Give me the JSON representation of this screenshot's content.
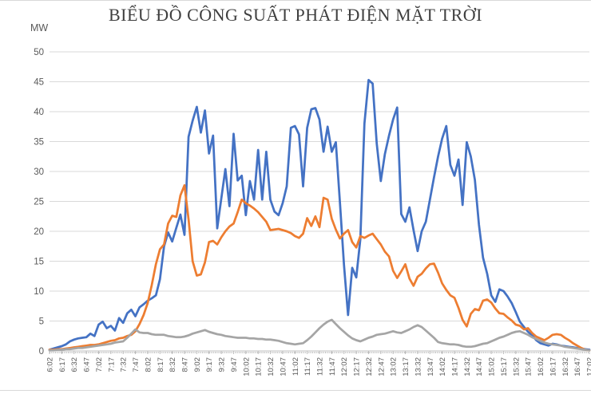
{
  "title": "BIỂU ĐỒ CÔNG SUẤT PHÁT ĐIỆN MẶT TRỜI",
  "y_axis_unit": "MW",
  "colors": {
    "series_blue": "#4472C4",
    "series_orange": "#ED7D31",
    "series_gray": "#A5A5A5",
    "gridline": "#D9D9D9",
    "axis_line": "#BFBFBF",
    "axis_text": "#595959",
    "title_text": "#3F3F3F"
  },
  "chart_data": {
    "type": "line",
    "title": "BIỂU ĐỒ CÔNG SUẤT PHÁT ĐIỆN MẶT TRỜI",
    "xlabel": "",
    "ylabel": "MW",
    "ylim": [
      0,
      50
    ],
    "y_ticks": [
      0,
      5,
      10,
      15,
      20,
      25,
      30,
      35,
      40,
      45,
      50
    ],
    "grid": "horizontal",
    "legend": "none",
    "x_tick_labels": [
      "6:02",
      "6:17",
      "6:32",
      "6:47",
      "7:02",
      "7:17",
      "7:32",
      "7:47",
      "8:02",
      "8:17",
      "8:32",
      "8:47",
      "9:02",
      "9:17",
      "9:32",
      "9:47",
      "10:02",
      "10:17",
      "10:32",
      "10:47",
      "11:02",
      "11:17",
      "11:32",
      "11:47",
      "12:02",
      "12:17",
      "12:32",
      "12:47",
      "13:02",
      "13:17",
      "13:32",
      "13:47",
      "14:02",
      "14:17",
      "14:32",
      "14:47",
      "15:02",
      "15:17",
      "15:32",
      "15:47",
      "16:02",
      "16:17",
      "16:32",
      "16:47",
      "17:02"
    ],
    "x": [
      "6:02",
      "6:07",
      "6:12",
      "6:17",
      "6:22",
      "6:27",
      "6:32",
      "6:37",
      "6:42",
      "6:47",
      "6:52",
      "6:57",
      "7:02",
      "7:07",
      "7:12",
      "7:17",
      "7:22",
      "7:27",
      "7:32",
      "7:37",
      "7:42",
      "7:47",
      "7:52",
      "7:57",
      "8:02",
      "8:07",
      "8:12",
      "8:17",
      "8:22",
      "8:27",
      "8:32",
      "8:37",
      "8:42",
      "8:47",
      "8:52",
      "8:57",
      "9:02",
      "9:07",
      "9:12",
      "9:17",
      "9:22",
      "9:27",
      "9:32",
      "9:37",
      "9:42",
      "9:47",
      "9:52",
      "9:57",
      "10:02",
      "10:07",
      "10:12",
      "10:17",
      "10:22",
      "10:27",
      "10:32",
      "10:37",
      "10:42",
      "10:47",
      "10:52",
      "10:57",
      "11:02",
      "11:07",
      "11:12",
      "11:17",
      "11:22",
      "11:27",
      "11:32",
      "11:37",
      "11:42",
      "11:47",
      "11:52",
      "11:57",
      "12:02",
      "12:07",
      "12:12",
      "12:17",
      "12:22",
      "12:27",
      "12:32",
      "12:37",
      "12:42",
      "12:47",
      "12:52",
      "12:57",
      "13:02",
      "13:07",
      "13:12",
      "13:17",
      "13:22",
      "13:27",
      "13:32",
      "13:37",
      "13:42",
      "13:47",
      "13:52",
      "13:57",
      "14:02",
      "14:07",
      "14:12",
      "14:17",
      "14:22",
      "14:27",
      "14:32",
      "14:37",
      "14:42",
      "14:47",
      "14:52",
      "14:57",
      "15:02",
      "15:07",
      "15:12",
      "15:17",
      "15:22",
      "15:27",
      "15:32",
      "15:37",
      "15:42",
      "15:47",
      "15:52",
      "15:57",
      "16:02",
      "16:07",
      "16:12",
      "16:17",
      "16:22",
      "16:27",
      "16:32",
      "16:37",
      "16:42",
      "16:47",
      "16:52",
      "16:57",
      "17:02"
    ],
    "series": [
      {
        "id": "blue",
        "name": "series-1-blue",
        "color": "#4472C4",
        "values": [
          0.2,
          0.4,
          0.6,
          0.8,
          1.1,
          1.6,
          1.9,
          2.1,
          2.2,
          2.3,
          2.9,
          2.5,
          4.4,
          4.9,
          3.8,
          4.2,
          3.4,
          5.5,
          4.7,
          6.3,
          6.9,
          5.8,
          7.3,
          7.8,
          8.4,
          8.8,
          9.3,
          12.0,
          17.5,
          19.8,
          18.3,
          20.6,
          22.8,
          19.4,
          35.8,
          38.5,
          40.8,
          36.5,
          40.2,
          33.0,
          36.0,
          20.5,
          25.5,
          30.4,
          24.2,
          36.3,
          28.5,
          29.3,
          22.7,
          28.4,
          25.3,
          33.6,
          25.3,
          33.3,
          25.3,
          23.3,
          22.7,
          24.7,
          27.5,
          37.3,
          37.6,
          36.2,
          27.5,
          37.3,
          40.4,
          40.6,
          38.7,
          33.3,
          37.5,
          33.3,
          34.9,
          24.9,
          14.4,
          6.0,
          13.9,
          12.3,
          18.7,
          38.0,
          45.3,
          44.7,
          34.7,
          28.4,
          32.9,
          36.0,
          38.7,
          40.7,
          22.9,
          21.6,
          24.0,
          20.2,
          16.7,
          20.0,
          21.6,
          25.3,
          29.0,
          32.5,
          35.5,
          37.6,
          31.1,
          29.3,
          32.0,
          24.4,
          34.9,
          32.5,
          28.6,
          21.1,
          15.6,
          12.9,
          9.3,
          8.2,
          10.3,
          10.0,
          9.1,
          8.0,
          6.5,
          4.9,
          4.0,
          3.2,
          2.6,
          1.8,
          1.3,
          1.1,
          0.9,
          1.2,
          1.1,
          0.9,
          0.8,
          0.7,
          0.6,
          0.5,
          0.4,
          0.3,
          0.2
        ]
      },
      {
        "id": "orange",
        "name": "series-2-orange",
        "color": "#ED7D31",
        "values": [
          0.2,
          0.2,
          0.3,
          0.3,
          0.4,
          0.5,
          0.6,
          0.7,
          0.8,
          0.9,
          1.0,
          1.0,
          1.1,
          1.3,
          1.5,
          1.7,
          1.8,
          2.1,
          2.2,
          2.5,
          2.7,
          3.3,
          4.5,
          6.0,
          8.0,
          11.0,
          14.5,
          17.0,
          17.8,
          21.3,
          22.6,
          22.4,
          26.0,
          27.7,
          22.0,
          15.0,
          12.6,
          12.8,
          14.8,
          18.2,
          18.4,
          17.8,
          19.0,
          20.0,
          20.8,
          21.3,
          23.2,
          25.3,
          24.7,
          24.3,
          23.8,
          23.2,
          22.4,
          21.6,
          20.2,
          20.3,
          20.4,
          20.2,
          20.0,
          19.7,
          19.2,
          18.9,
          19.6,
          22.2,
          20.9,
          22.5,
          20.7,
          25.6,
          25.3,
          22.1,
          20.3,
          18.8,
          19.6,
          20.2,
          18.2,
          17.3,
          19.2,
          18.9,
          19.3,
          19.6,
          18.7,
          17.8,
          16.6,
          15.8,
          13.4,
          12.2,
          13.3,
          14.5,
          12.1,
          10.9,
          12.4,
          12.9,
          13.8,
          14.5,
          14.6,
          13.1,
          11.3,
          10.2,
          9.3,
          8.9,
          7.2,
          5.2,
          4.1,
          6.2,
          7.0,
          6.8,
          8.4,
          8.6,
          8.1,
          7.1,
          6.3,
          6.2,
          5.6,
          5.1,
          4.4,
          4.2,
          3.6,
          3.8,
          3.0,
          2.4,
          2.1,
          1.8,
          2.2,
          2.7,
          2.8,
          2.7,
          2.2,
          1.8,
          1.3,
          0.9,
          0.5,
          0.2,
          0.1
        ]
      },
      {
        "id": "gray",
        "name": "series-3-gray",
        "color": "#A5A5A5",
        "values": [
          0.1,
          0.1,
          0.2,
          0.2,
          0.3,
          0.3,
          0.4,
          0.5,
          0.5,
          0.6,
          0.7,
          0.8,
          0.9,
          1.0,
          1.1,
          1.2,
          1.4,
          1.5,
          1.6,
          2.2,
          2.9,
          3.6,
          3.1,
          3.0,
          3.0,
          2.8,
          2.7,
          2.7,
          2.7,
          2.5,
          2.4,
          2.3,
          2.3,
          2.4,
          2.6,
          2.9,
          3.1,
          3.3,
          3.5,
          3.2,
          3.0,
          2.8,
          2.7,
          2.5,
          2.4,
          2.3,
          2.2,
          2.2,
          2.2,
          2.1,
          2.1,
          2.0,
          2.0,
          1.9,
          1.9,
          1.8,
          1.7,
          1.5,
          1.3,
          1.2,
          1.1,
          1.2,
          1.3,
          1.8,
          2.4,
          3.1,
          3.8,
          4.4,
          4.9,
          5.2,
          4.5,
          3.8,
          3.2,
          2.6,
          2.1,
          1.8,
          1.6,
          1.9,
          2.2,
          2.4,
          2.7,
          2.8,
          2.9,
          3.1,
          3.3,
          3.1,
          3.0,
          3.3,
          3.6,
          4.0,
          4.3,
          4.0,
          3.4,
          2.8,
          2.2,
          1.5,
          1.3,
          1.2,
          1.1,
          1.1,
          1.0,
          0.8,
          0.7,
          0.7,
          0.8,
          1.0,
          1.2,
          1.3,
          1.6,
          1.9,
          2.2,
          2.4,
          2.7,
          3.0,
          3.2,
          3.3,
          3.0,
          2.7,
          2.3,
          2.0,
          1.7,
          1.4,
          1.2,
          1.1,
          1.0,
          0.9,
          0.7,
          0.6,
          0.5,
          0.4,
          0.3,
          0.2,
          0.1
        ]
      }
    ]
  }
}
